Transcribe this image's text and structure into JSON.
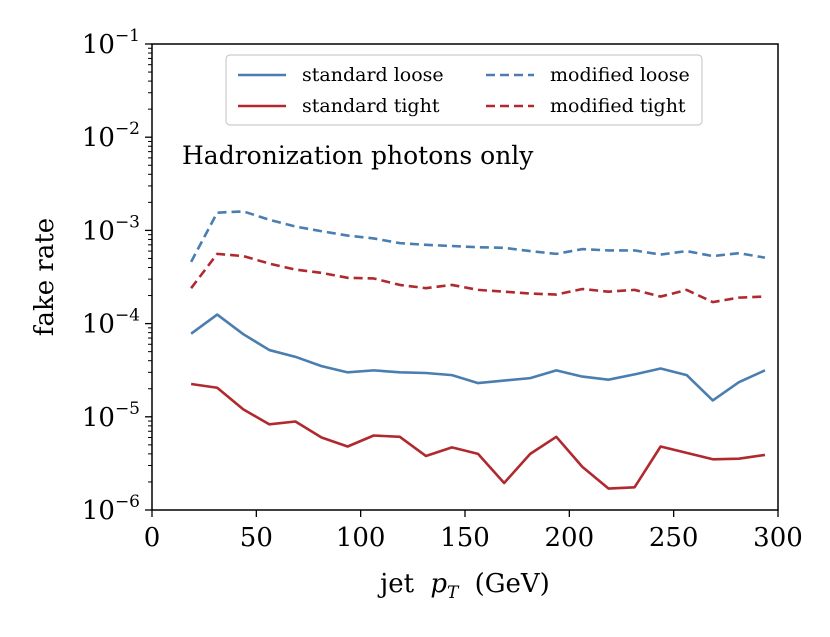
{
  "chart_data": {
    "type": "line",
    "title": "",
    "xlabel": "jet",
    "xlabel_var": "p",
    "xlabel_sub": "T",
    "xlabel_unit": "(GeV)",
    "ylabel": "fake rate",
    "yscale": "log",
    "xlim": [
      0,
      300
    ],
    "ylim": [
      1e-06,
      0.1
    ],
    "x_ticks": [
      0,
      50,
      100,
      150,
      200,
      250,
      300
    ],
    "y_ticks": [
      {
        "value": 1e-06,
        "base": "10",
        "exp": "−6"
      },
      {
        "value": 1e-05,
        "base": "10",
        "exp": "−5"
      },
      {
        "value": 0.0001,
        "base": "10",
        "exp": "−4"
      },
      {
        "value": 0.001,
        "base": "10",
        "exp": "−3"
      },
      {
        "value": 0.01,
        "base": "10",
        "exp": "−2"
      },
      {
        "value": 0.1,
        "base": "10",
        "exp": "−1"
      }
    ],
    "annotation": "Hadronization photons only",
    "x": [
      18.75,
      31.25,
      43.75,
      56.25,
      68.75,
      81.25,
      93.75,
      106.25,
      118.75,
      131.25,
      143.75,
      156.25,
      168.75,
      181.25,
      193.75,
      206.25,
      218.75,
      231.25,
      243.75,
      256.25,
      268.75,
      281.25,
      293.75
    ],
    "series": [
      {
        "name": "standard loose",
        "color": "#4a7eb0",
        "dash": "solid",
        "values": [
          7.8e-05,
          0.000125,
          7.7e-05,
          5.2e-05,
          4.4e-05,
          3.5e-05,
          3e-05,
          3.15e-05,
          3e-05,
          2.95e-05,
          2.8e-05,
          2.3e-05,
          2.45e-05,
          2.6e-05,
          3.15e-05,
          2.7e-05,
          2.5e-05,
          2.85e-05,
          3.3e-05,
          2.8e-05,
          1.5e-05,
          2.35e-05,
          3.15e-05
        ]
      },
      {
        "name": "standard tight",
        "color": "#b0292e",
        "dash": "solid",
        "values": [
          2.25e-05,
          2.05e-05,
          1.2e-05,
          8.3e-06,
          8.9e-06,
          6e-06,
          4.8e-06,
          6.3e-06,
          6.1e-06,
          3.8e-06,
          4.7e-06,
          4e-06,
          1.95e-06,
          4e-06,
          6.1e-06,
          2.9e-06,
          1.7e-06,
          1.75e-06,
          4.8e-06,
          4.1e-06,
          3.5e-06,
          3.55e-06,
          3.9e-06
        ]
      },
      {
        "name": "modified loose",
        "color": "#4a7eb0",
        "dash": "dashed",
        "values": [
          0.00046,
          0.00155,
          0.0016,
          0.0013,
          0.0011,
          0.00098,
          0.00088,
          0.00082,
          0.00073,
          0.0007,
          0.00068,
          0.00066,
          0.00065,
          0.0006,
          0.00056,
          0.00063,
          0.00061,
          0.00061,
          0.00055,
          0.0006,
          0.00053,
          0.00057,
          0.00051
        ]
      },
      {
        "name": "modified tight",
        "color": "#b0292e",
        "dash": "dashed",
        "values": [
          0.00024,
          0.00056,
          0.00053,
          0.00044,
          0.00038,
          0.00035,
          0.00031,
          0.000305,
          0.00026,
          0.00024,
          0.00026,
          0.00023,
          0.00022,
          0.00021,
          0.000205,
          0.000235,
          0.00022,
          0.00023,
          0.000195,
          0.00023,
          0.00017,
          0.00019,
          0.000195
        ]
      }
    ],
    "legend": {
      "placement": "upper-center",
      "columns": 2,
      "order": [
        "standard loose",
        "modified loose",
        "standard tight",
        "modified tight"
      ]
    }
  }
}
